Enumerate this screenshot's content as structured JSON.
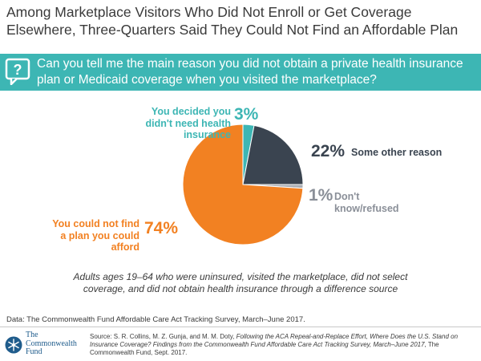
{
  "page": {
    "title": "Among Marketplace Visitors Who Did Not Enroll or Get Coverage Elsewhere, Three-Quarters Said They Could Not Find an Affordable Plan",
    "question": "Can you tell me the main reason you did not obtain a private health insurance plan or Medicaid coverage when you visited the marketplace?",
    "note": "Adults ages 19–64 who were uninsured, visited the marketplace, did not select coverage, and did not obtain health insurance through a difference source",
    "data_source": "Data: The Commonwealth Fund Affordable Care Act Tracking Survey, March–June 2017.",
    "source_prefix": "Source: S. R. Collins, M. Z. Gunja, and M. M. Doty, ",
    "source_title": "Following the ACA Repeal-and-Replace Effort, Where Does the U.S. Stand on Insurance Coverage? Findings from the Commonwealth Fund Affordable Care Act Tracking Survey, March–June 2017",
    "source_suffix": ", The Commonwealth Fund, Sept. 2017.",
    "logo_line1": "The",
    "logo_line2": "Commonwealth",
    "logo_line3": "Fund"
  },
  "icons": {
    "question": "question-bubble-icon",
    "logo": "snowflake-seal-icon"
  },
  "colors": {
    "teal": "#3db6b4",
    "dark": "#3a4450",
    "grey": "#a9adb3",
    "orange": "#f28122"
  },
  "chart_data": {
    "type": "pie",
    "title": "Can you tell me the main reason you did not obtain a private health insurance plan or Medicaid coverage when you visited the marketplace?",
    "start_angle_deg": 0,
    "direction": "clockwise",
    "slices": [
      {
        "label": "You decided you didn't need health insurance",
        "value": 3,
        "value_label": "3%",
        "color": "#3db6b4"
      },
      {
        "label": "Some other reason",
        "value": 22,
        "value_label": "22%",
        "color": "#3a4450"
      },
      {
        "label": "Don't know/refused",
        "value": 1,
        "value_label": "1%",
        "color": "#a9adb3"
      },
      {
        "label": "You could not find a plan you could afford",
        "value": 74,
        "value_label": "74%",
        "color": "#f28122"
      }
    ]
  }
}
